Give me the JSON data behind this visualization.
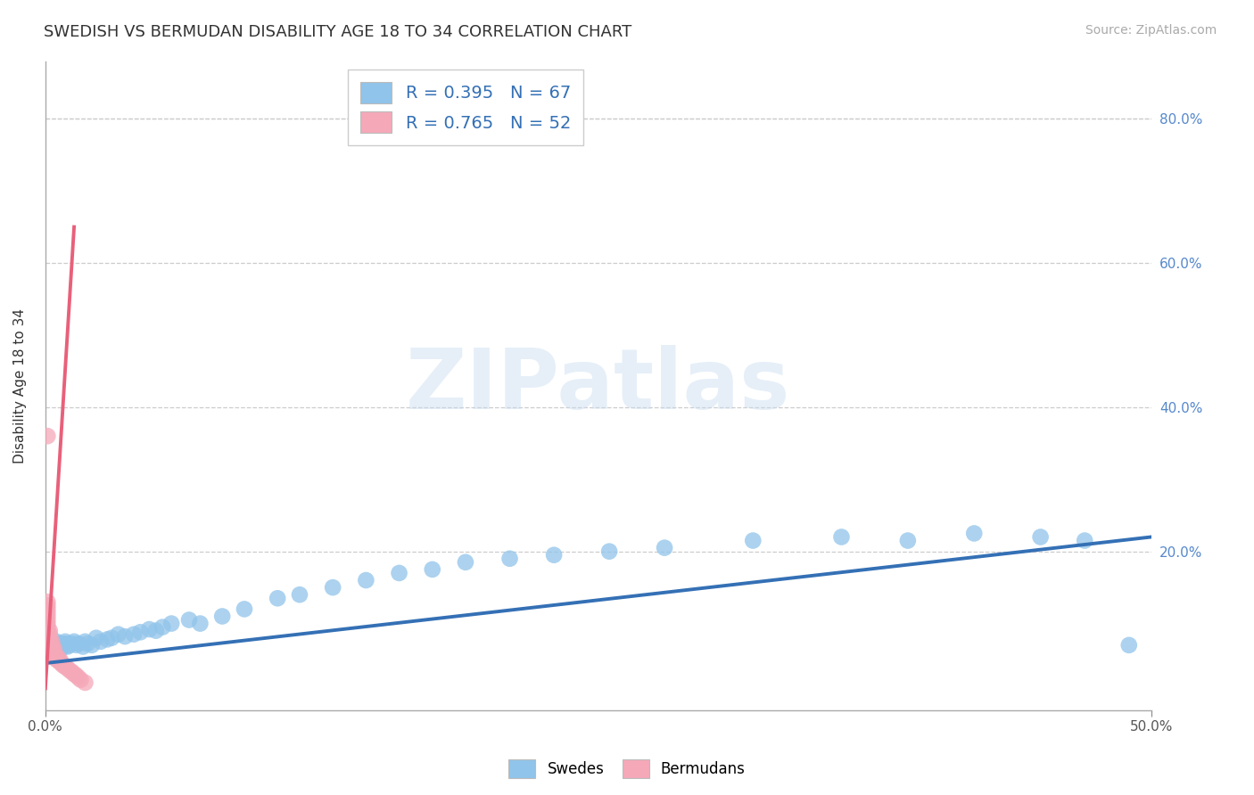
{
  "title": "SWEDISH VS BERMUDAN DISABILITY AGE 18 TO 34 CORRELATION CHART",
  "source": "Source: ZipAtlas.com",
  "ylabel": "Disability Age 18 to 34",
  "watermark": "ZIPatlas",
  "xlim": [
    0.0,
    0.5
  ],
  "ylim": [
    -0.02,
    0.88
  ],
  "xtick_positions": [
    0.0,
    0.5
  ],
  "xticklabels": [
    "0.0%",
    "50.0%"
  ],
  "ytick_positions": [
    0.2,
    0.4,
    0.6,
    0.8
  ],
  "yticklabels_right": [
    "20.0%",
    "40.0%",
    "60.0%",
    "80.0%"
  ],
  "grid_yticks": [
    0.8,
    0.6,
    0.4,
    0.2
  ],
  "swedes_R": 0.395,
  "swedes_N": 67,
  "bermudans_R": 0.765,
  "bermudans_N": 52,
  "swede_color": "#90c4ea",
  "bermudan_color": "#f5a8b8",
  "swede_line_color": "#3470b5",
  "bermudan_line_color": "#e8607a",
  "legend_swedes": "Swedes",
  "legend_bermudans": "Bermudans",
  "swede_line_x": [
    0.0,
    0.5
  ],
  "swede_line_y": [
    0.045,
    0.22
  ],
  "bermudan_line_x": [
    0.0,
    0.013
  ],
  "bermudan_line_y": [
    0.01,
    0.65
  ],
  "background_color": "#ffffff",
  "grid_color": "#cccccc",
  "title_fontsize": 13,
  "axis_label_fontsize": 11,
  "tick_fontsize": 11,
  "source_fontsize": 10,
  "watermark_fontsize": 68,
  "watermark_color": "#c8dcf0",
  "watermark_alpha": 0.45,
  "sw_x": [
    0.001,
    0.001,
    0.001,
    0.002,
    0.002,
    0.002,
    0.003,
    0.003,
    0.003,
    0.004,
    0.004,
    0.005,
    0.005,
    0.005,
    0.006,
    0.006,
    0.007,
    0.007,
    0.008,
    0.008,
    0.009,
    0.009,
    0.01,
    0.01,
    0.011,
    0.012,
    0.013,
    0.014,
    0.015,
    0.017,
    0.018,
    0.019,
    0.021,
    0.023,
    0.025,
    0.028,
    0.03,
    0.033,
    0.036,
    0.04,
    0.043,
    0.047,
    0.05,
    0.053,
    0.057,
    0.065,
    0.07,
    0.08,
    0.09,
    0.105,
    0.115,
    0.13,
    0.145,
    0.16,
    0.175,
    0.19,
    0.21,
    0.23,
    0.255,
    0.28,
    0.32,
    0.36,
    0.39,
    0.42,
    0.45,
    0.47,
    0.49
  ],
  "sw_y": [
    0.065,
    0.075,
    0.08,
    0.06,
    0.07,
    0.075,
    0.065,
    0.07,
    0.072,
    0.068,
    0.072,
    0.065,
    0.07,
    0.075,
    0.068,
    0.072,
    0.065,
    0.07,
    0.068,
    0.072,
    0.07,
    0.075,
    0.068,
    0.072,
    0.07,
    0.072,
    0.075,
    0.07,
    0.072,
    0.068,
    0.075,
    0.072,
    0.07,
    0.08,
    0.075,
    0.078,
    0.08,
    0.085,
    0.082,
    0.085,
    0.088,
    0.092,
    0.09,
    0.095,
    0.1,
    0.105,
    0.1,
    0.11,
    0.12,
    0.135,
    0.14,
    0.15,
    0.16,
    0.17,
    0.175,
    0.185,
    0.19,
    0.195,
    0.2,
    0.205,
    0.215,
    0.22,
    0.215,
    0.225,
    0.22,
    0.215,
    0.07
  ],
  "bm_x": [
    0.001,
    0.001,
    0.001,
    0.001,
    0.001,
    0.001,
    0.001,
    0.001,
    0.001,
    0.001,
    0.001,
    0.001,
    0.001,
    0.001,
    0.001,
    0.001,
    0.001,
    0.001,
    0.001,
    0.001,
    0.002,
    0.002,
    0.002,
    0.002,
    0.002,
    0.002,
    0.002,
    0.002,
    0.003,
    0.003,
    0.003,
    0.003,
    0.003,
    0.004,
    0.004,
    0.004,
    0.005,
    0.005,
    0.006,
    0.006,
    0.007,
    0.007,
    0.008,
    0.009,
    0.01,
    0.011,
    0.012,
    0.013,
    0.014,
    0.015,
    0.016,
    0.018
  ],
  "bm_y": [
    0.06,
    0.065,
    0.068,
    0.07,
    0.072,
    0.075,
    0.078,
    0.08,
    0.082,
    0.085,
    0.09,
    0.095,
    0.1,
    0.105,
    0.11,
    0.115,
    0.12,
    0.125,
    0.13,
    0.36,
    0.055,
    0.06,
    0.065,
    0.07,
    0.075,
    0.08,
    0.085,
    0.09,
    0.055,
    0.06,
    0.065,
    0.07,
    0.075,
    0.055,
    0.06,
    0.065,
    0.05,
    0.055,
    0.048,
    0.052,
    0.045,
    0.048,
    0.042,
    0.04,
    0.038,
    0.035,
    0.033,
    0.03,
    0.028,
    0.025,
    0.022,
    0.018
  ]
}
